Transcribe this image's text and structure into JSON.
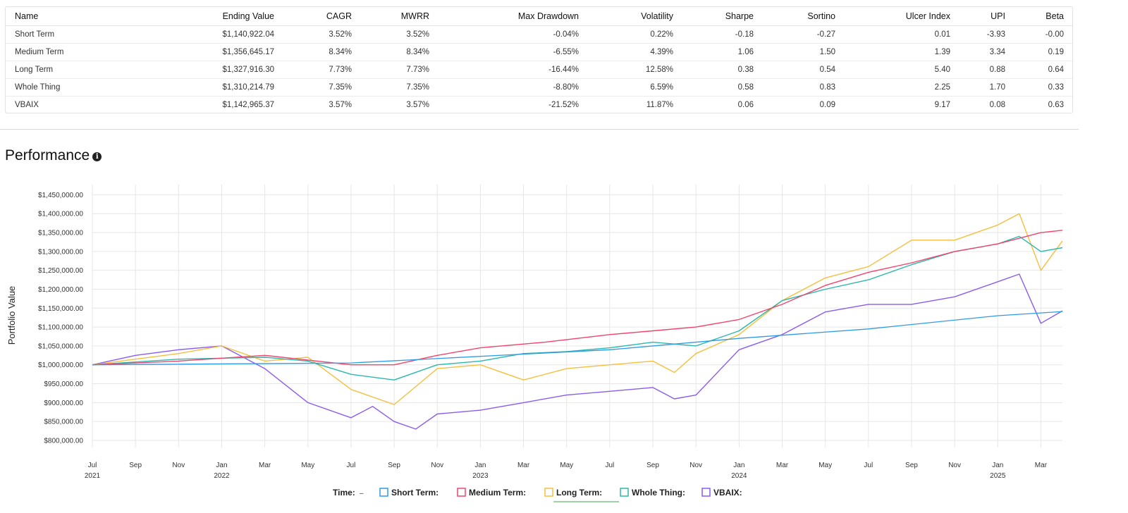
{
  "table": {
    "columns": [
      "Name",
      "Ending Value",
      "CAGR",
      "MWRR",
      "Max Drawdown",
      "Volatility",
      "Sharpe",
      "Sortino",
      "Ulcer Index",
      "UPI",
      "Beta"
    ],
    "rows": [
      [
        "Short Term",
        "$1,140,922.04",
        "3.52%",
        "3.52%",
        "-0.04%",
        "0.22%",
        "-0.18",
        "-0.27",
        "0.01",
        "-3.93",
        "-0.00"
      ],
      [
        "Medium Term",
        "$1,356,645.17",
        "8.34%",
        "8.34%",
        "-6.55%",
        "4.39%",
        "1.06",
        "1.50",
        "1.39",
        "3.34",
        "0.19"
      ],
      [
        "Long Term",
        "$1,327,916.30",
        "7.73%",
        "7.73%",
        "-16.44%",
        "12.58%",
        "0.38",
        "0.54",
        "5.40",
        "0.88",
        "0.64"
      ],
      [
        "Whole Thing",
        "$1,310,214.79",
        "7.35%",
        "7.35%",
        "-8.80%",
        "6.59%",
        "0.58",
        "0.83",
        "2.25",
        "1.70",
        "0.33"
      ],
      [
        "VBAIX",
        "$1,142,965.37",
        "3.57%",
        "3.57%",
        "-21.52%",
        "11.87%",
        "0.06",
        "0.09",
        "9.17",
        "0.08",
        "0.63"
      ]
    ]
  },
  "section": {
    "title": "Performance",
    "info_icon": "info-icon"
  },
  "chart_data": {
    "type": "line",
    "ylabel": "Portfolio Value",
    "ylim": [
      800000,
      1450000
    ],
    "y_ticks": [
      "$800,000.00",
      "$850,000.00",
      "$900,000.00",
      "$950,000.00",
      "$1,000,000.00",
      "$1,050,000.00",
      "$1,100,000.00",
      "$1,150,000.00",
      "$1,200,000.00",
      "$1,250,000.00",
      "$1,300,000.00",
      "$1,350,000.00",
      "$1,400,000.00",
      "$1,450,000.00"
    ],
    "x_range": [
      "2021-07",
      "2025-04"
    ],
    "x_ticks": [
      {
        "date": "2021-07",
        "label": "Jul",
        "year": "2021"
      },
      {
        "date": "2021-09",
        "label": "Sep",
        "year": ""
      },
      {
        "date": "2021-11",
        "label": "Nov",
        "year": ""
      },
      {
        "date": "2022-01",
        "label": "Jan",
        "year": "2022"
      },
      {
        "date": "2022-03",
        "label": "Mar",
        "year": ""
      },
      {
        "date": "2022-05",
        "label": "May",
        "year": ""
      },
      {
        "date": "2022-07",
        "label": "Jul",
        "year": ""
      },
      {
        "date": "2022-09",
        "label": "Sep",
        "year": ""
      },
      {
        "date": "2022-11",
        "label": "Nov",
        "year": ""
      },
      {
        "date": "2023-01",
        "label": "Jan",
        "year": "2023"
      },
      {
        "date": "2023-03",
        "label": "Mar",
        "year": ""
      },
      {
        "date": "2023-05",
        "label": "May",
        "year": ""
      },
      {
        "date": "2023-07",
        "label": "Jul",
        "year": ""
      },
      {
        "date": "2023-09",
        "label": "Sep",
        "year": ""
      },
      {
        "date": "2023-11",
        "label": "Nov",
        "year": ""
      },
      {
        "date": "2024-01",
        "label": "Jan",
        "year": "2024"
      },
      {
        "date": "2024-03",
        "label": "Mar",
        "year": ""
      },
      {
        "date": "2024-05",
        "label": "May",
        "year": ""
      },
      {
        "date": "2024-07",
        "label": "Jul",
        "year": ""
      },
      {
        "date": "2024-09",
        "label": "Sep",
        "year": ""
      },
      {
        "date": "2024-11",
        "label": "Nov",
        "year": ""
      },
      {
        "date": "2025-01",
        "label": "Jan",
        "year": "2025"
      },
      {
        "date": "2025-03",
        "label": "Mar",
        "year": ""
      }
    ],
    "grid": true,
    "legend_position": "bottom",
    "legend": {
      "time_label": "Time:",
      "time_value": "–"
    },
    "series": [
      {
        "name": "Short Term",
        "legend_label": "Short Term:",
        "color": "#2e9be6",
        "x": [
          "2021-07",
          "2022-07",
          "2023-07",
          "2024-01",
          "2024-07",
          "2025-01",
          "2025-04"
        ],
        "y": [
          1000000,
          1005000,
          1040000,
          1070000,
          1095000,
          1130000,
          1141000
        ]
      },
      {
        "name": "Medium Term",
        "legend_label": "Medium Term:",
        "color": "#f2436c",
        "x": [
          "2021-07",
          "2021-11",
          "2022-03",
          "2022-07",
          "2022-09",
          "2022-11",
          "2023-01",
          "2023-04",
          "2023-07",
          "2023-09",
          "2023-11",
          "2024-01",
          "2024-03",
          "2024-05",
          "2024-07",
          "2024-09",
          "2024-11",
          "2025-01",
          "2025-03",
          "2025-04"
        ],
        "y": [
          1000000,
          1010000,
          1025000,
          1000000,
          1000000,
          1025000,
          1045000,
          1060000,
          1080000,
          1090000,
          1100000,
          1120000,
          1160000,
          1210000,
          1245000,
          1270000,
          1300000,
          1320000,
          1350000,
          1356000
        ]
      },
      {
        "name": "Long Term",
        "legend_label": "Long Term:",
        "color": "#f5bf3c",
        "x": [
          "2021-07",
          "2021-11",
          "2022-01",
          "2022-03",
          "2022-05",
          "2022-07",
          "2022-09",
          "2022-11",
          "2023-01",
          "2023-03",
          "2023-05",
          "2023-07",
          "2023-09",
          "2023-10",
          "2023-11",
          "2024-01",
          "2024-03",
          "2024-05",
          "2024-07",
          "2024-09",
          "2024-11",
          "2025-01",
          "2025-02",
          "2025-03",
          "2025-04"
        ],
        "y": [
          1000000,
          1030000,
          1050000,
          1010000,
          1020000,
          935000,
          895000,
          990000,
          1000000,
          960000,
          990000,
          1000000,
          1010000,
          980000,
          1030000,
          1080000,
          1170000,
          1230000,
          1260000,
          1330000,
          1330000,
          1370000,
          1400000,
          1250000,
          1328000
        ]
      },
      {
        "name": "Whole Thing",
        "legend_label": "Whole Thing:",
        "color": "#2ab8ac",
        "x": [
          "2021-07",
          "2021-11",
          "2022-03",
          "2022-05",
          "2022-07",
          "2022-09",
          "2022-11",
          "2023-01",
          "2023-03",
          "2023-05",
          "2023-07",
          "2023-09",
          "2023-11",
          "2024-01",
          "2024-03",
          "2024-05",
          "2024-07",
          "2024-09",
          "2024-11",
          "2025-01",
          "2025-02",
          "2025-03",
          "2025-04"
        ],
        "y": [
          1000000,
          1015000,
          1020000,
          1010000,
          975000,
          960000,
          1000000,
          1010000,
          1030000,
          1035000,
          1045000,
          1060000,
          1050000,
          1090000,
          1170000,
          1200000,
          1225000,
          1265000,
          1300000,
          1320000,
          1340000,
          1300000,
          1310000
        ]
      },
      {
        "name": "VBAIX",
        "legend_label": "VBAIX:",
        "color": "#8a5cf0",
        "x": [
          "2021-07",
          "2021-09",
          "2021-11",
          "2022-01",
          "2022-03",
          "2022-05",
          "2022-07",
          "2022-08",
          "2022-09",
          "2022-10",
          "2022-11",
          "2023-01",
          "2023-03",
          "2023-05",
          "2023-07",
          "2023-09",
          "2023-10",
          "2023-11",
          "2024-01",
          "2024-03",
          "2024-05",
          "2024-07",
          "2024-09",
          "2024-11",
          "2025-01",
          "2025-02",
          "2025-03",
          "2025-04"
        ],
        "y": [
          1000000,
          1025000,
          1040000,
          1050000,
          990000,
          900000,
          860000,
          890000,
          850000,
          830000,
          870000,
          880000,
          900000,
          920000,
          930000,
          940000,
          910000,
          920000,
          1040000,
          1080000,
          1140000,
          1160000,
          1160000,
          1180000,
          1220000,
          1240000,
          1110000,
          1143000
        ]
      }
    ]
  }
}
